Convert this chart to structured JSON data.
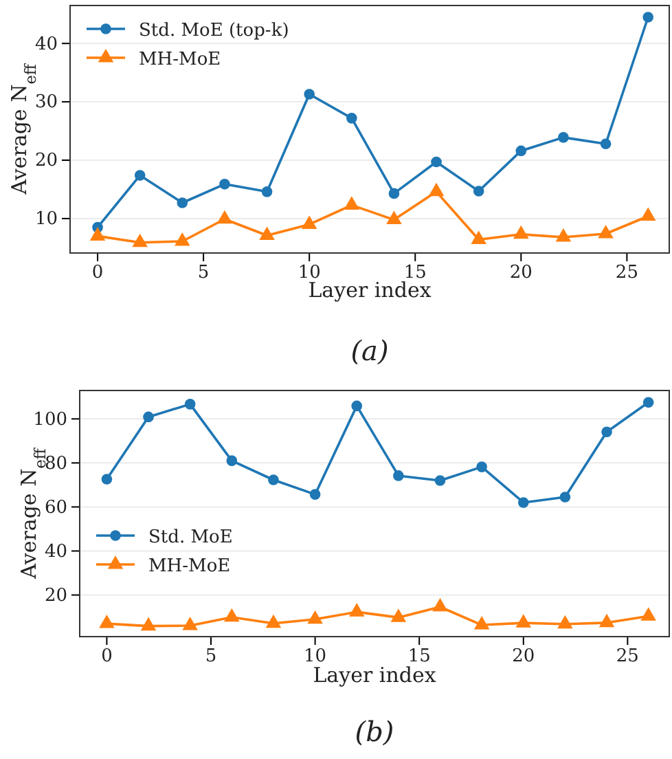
{
  "chart_data": [
    {
      "type": "line",
      "title": "(a)",
      "xlabel": "Layer index",
      "ylabel": "Average N$_{eff}$",
      "x": [
        0,
        2,
        4,
        6,
        8,
        10,
        12,
        14,
        16,
        18,
        20,
        22,
        24,
        26
      ],
      "xlim": [
        -1.3,
        27
      ],
      "xticks": [
        0,
        5,
        10,
        15,
        20,
        25
      ],
      "ylim": [
        4.1,
        46.5
      ],
      "yticks": [
        10,
        20,
        30,
        40
      ],
      "grid": "y",
      "legend": "top left",
      "series": [
        {
          "name": "Std. MoE (top-k)",
          "color": "#1f77b4",
          "marker": "circle",
          "values": [
            8.5,
            17.4,
            12.7,
            15.9,
            14.6,
            31.3,
            27.2,
            14.3,
            19.7,
            14.7,
            21.6,
            23.9,
            22.8,
            44.5
          ]
        },
        {
          "name": "MH-MoE",
          "color": "#ff7f0e",
          "marker": "triangle",
          "values": [
            7.0,
            5.9,
            6.1,
            9.9,
            7.1,
            9.0,
            12.3,
            9.8,
            14.6,
            6.4,
            7.3,
            6.8,
            7.4,
            10.4
          ]
        }
      ]
    },
    {
      "type": "line",
      "title": "(b)",
      "xlabel": "Layer index",
      "ylabel": "Average N$_{eff}$",
      "x": [
        0,
        2,
        4,
        6,
        8,
        10,
        12,
        14,
        16,
        18,
        20,
        22,
        24,
        26
      ],
      "xlim": [
        -1.3,
        27
      ],
      "xticks": [
        0,
        5,
        10,
        15,
        20,
        25
      ],
      "ylim": [
        1.1,
        112.9
      ],
      "yticks": [
        20,
        40,
        60,
        80,
        100
      ],
      "grid": "y",
      "legend": "left",
      "series": [
        {
          "name": "Std. MoE",
          "color": "#1f77b4",
          "marker": "circle",
          "values": [
            72.6,
            100.9,
            106.7,
            81.0,
            72.3,
            65.7,
            105.9,
            74.2,
            72.0,
            78.2,
            62.0,
            64.5,
            94.1,
            107.5
          ]
        },
        {
          "name": "MH-MoE",
          "color": "#ff7f0e",
          "marker": "triangle",
          "values": [
            7.0,
            5.9,
            6.1,
            9.9,
            7.1,
            9.0,
            12.3,
            9.8,
            14.6,
            6.4,
            7.3,
            6.8,
            7.4,
            10.4
          ]
        }
      ]
    }
  ]
}
